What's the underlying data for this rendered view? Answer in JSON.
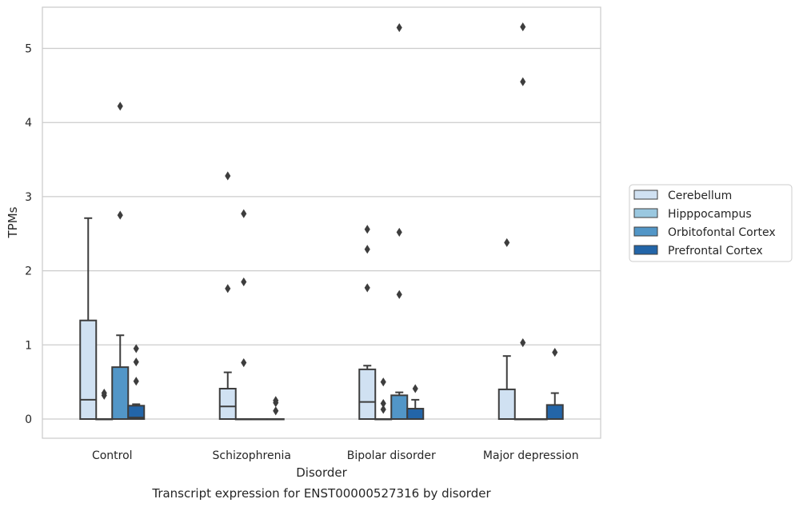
{
  "chart_data": {
    "type": "box",
    "title": "",
    "caption": "Transcript expression for ENST00000527316 by disorder",
    "xlabel": "Disorder",
    "ylabel": "TPMs",
    "ylim": [
      -0.26,
      5.55
    ],
    "yticks": [
      0,
      1,
      2,
      3,
      4,
      5
    ],
    "grid": "horizontal",
    "legend_position": "right",
    "categories": [
      "Control",
      "Schizophrenia",
      "Bipolar disorder",
      "Major depression"
    ],
    "series": [
      {
        "name": "Cerebellum",
        "color": "#d0e1f2",
        "boxes": [
          {
            "q1": 0,
            "median": 0.26,
            "q3": 1.33,
            "whisker_low": 0,
            "whisker_high": 2.71,
            "outliers": []
          },
          {
            "q1": 0,
            "median": 0.17,
            "q3": 0.41,
            "whisker_low": 0,
            "whisker_high": 0.63,
            "outliers": [
              1.76,
              3.28
            ]
          },
          {
            "q1": 0,
            "median": 0.23,
            "q3": 0.67,
            "whisker_low": 0,
            "whisker_high": 0.72,
            "outliers": [
              1.77,
              2.29,
              2.56
            ]
          },
          {
            "q1": 0,
            "median": 0.0,
            "q3": 0.4,
            "whisker_low": 0,
            "whisker_high": 0.85,
            "outliers": [
              2.38
            ]
          }
        ]
      },
      {
        "name": "Hipppocampus",
        "color": "#9ac8e0",
        "boxes": [
          {
            "q1": 0,
            "median": 0,
            "q3": 0,
            "whisker_low": 0,
            "whisker_high": 0,
            "outliers": [
              0.32,
              0.35
            ]
          },
          {
            "q1": 0,
            "median": 0,
            "q3": 0,
            "whisker_low": 0,
            "whisker_high": 0,
            "outliers": [
              0.76,
              1.85,
              2.77
            ]
          },
          {
            "q1": 0,
            "median": 0,
            "q3": 0,
            "whisker_low": 0,
            "whisker_high": 0,
            "outliers": [
              0.13,
              0.21,
              0.5
            ]
          },
          {
            "q1": 0,
            "median": 0,
            "q3": 0,
            "whisker_low": 0,
            "whisker_high": 0,
            "outliers": [
              1.03,
              4.55,
              5.29
            ]
          }
        ]
      },
      {
        "name": "Orbitofontal Cortex",
        "color": "#5296c7",
        "boxes": [
          {
            "q1": 0,
            "median": 0.0,
            "q3": 0.7,
            "whisker_low": 0,
            "whisker_high": 1.13,
            "outliers": [
              2.75,
              4.22
            ]
          },
          {
            "q1": 0,
            "median": 0,
            "q3": 0,
            "whisker_low": 0,
            "whisker_high": 0,
            "outliers": []
          },
          {
            "q1": 0,
            "median": 0.0,
            "q3": 0.32,
            "whisker_low": 0,
            "whisker_high": 0.36,
            "outliers": [
              1.68,
              2.52,
              5.28
            ]
          },
          {
            "q1": 0,
            "median": 0,
            "q3": 0,
            "whisker_low": 0,
            "whisker_high": 0,
            "outliers": []
          }
        ]
      },
      {
        "name": "Prefrontal Cortex",
        "color": "#2365a8",
        "boxes": [
          {
            "q1": 0,
            "median": 0.02,
            "q3": 0.18,
            "whisker_low": 0,
            "whisker_high": 0.2,
            "outliers": [
              0.51,
              0.77,
              0.95
            ]
          },
          {
            "q1": 0,
            "median": 0,
            "q3": 0,
            "whisker_low": 0,
            "whisker_high": 0,
            "outliers": [
              0.11,
              0.22,
              0.25
            ]
          },
          {
            "q1": 0,
            "median": 0.0,
            "q3": 0.14,
            "whisker_low": 0,
            "whisker_high": 0.26,
            "outliers": [
              0.41
            ]
          },
          {
            "q1": 0,
            "median": 0.0,
            "q3": 0.19,
            "whisker_low": 0,
            "whisker_high": 0.35,
            "outliers": [
              0.9
            ]
          }
        ]
      }
    ]
  }
}
